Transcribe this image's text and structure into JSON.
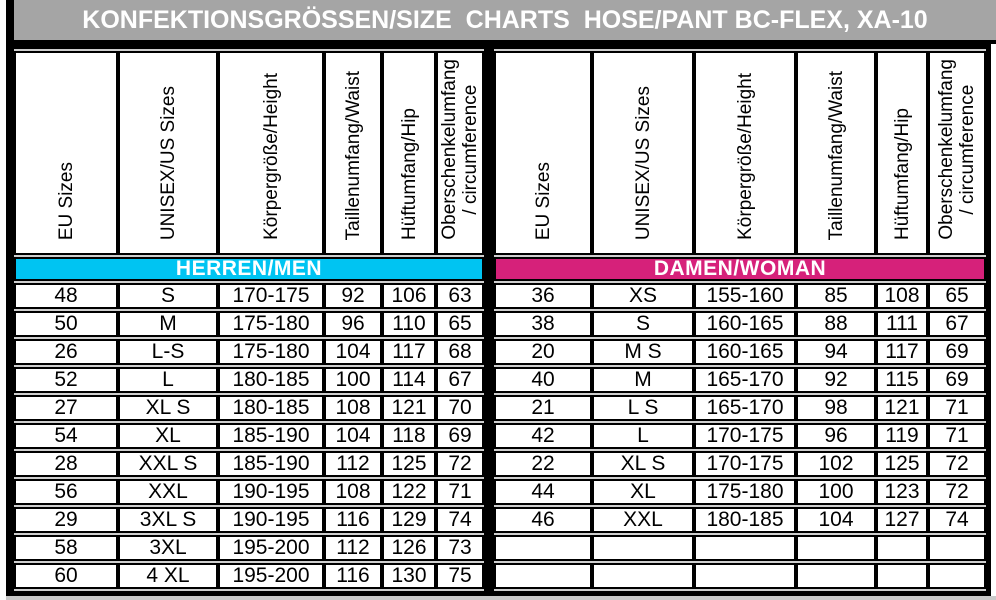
{
  "title": "KONFEKTIONSGRÖSSEN/SIZE  CHARTS  HOSE/PANT BC-FLEX, XA-10",
  "columns": [
    {
      "lines": [
        "EU Sizes"
      ]
    },
    {
      "lines": [
        "UNISEX/US Sizes"
      ]
    },
    {
      "lines": [
        "Körpergröße/Height"
      ]
    },
    {
      "lines": [
        "Taillenumfang/Waist"
      ]
    },
    {
      "lines": [
        "Hüftumfang/Hip"
      ]
    },
    {
      "lines": [
        "Oberschenkelumfang",
        "/ circumference"
      ]
    }
  ],
  "sections": [
    {
      "label": "HERREN/MEN",
      "color": "#00c4f2",
      "rows": [
        [
          "48",
          "S",
          "170-175",
          "92",
          "106",
          "63"
        ],
        [
          "50",
          "M",
          "175-180",
          "96",
          "110",
          "65"
        ],
        [
          "26",
          "L-S",
          "175-180",
          "104",
          "117",
          "68"
        ],
        [
          "52",
          "L",
          "180-185",
          "100",
          "114",
          "67"
        ],
        [
          "27",
          "XL S",
          "180-185",
          "108",
          "121",
          "70"
        ],
        [
          "54",
          "XL",
          "185-190",
          "104",
          "118",
          "69"
        ],
        [
          "28",
          "XXL S",
          "185-190",
          "112",
          "125",
          "72"
        ],
        [
          "56",
          "XXL",
          "190-195",
          "108",
          "122",
          "71"
        ],
        [
          "29",
          "3XL S",
          "190-195",
          "116",
          "129",
          "74"
        ],
        [
          "58",
          "3XL",
          "195-200",
          "112",
          "126",
          "73"
        ],
        [
          "60",
          "4 XL",
          "195-200",
          "116",
          "130",
          "75"
        ]
      ]
    },
    {
      "label": "DAMEN/WOMAN",
      "color": "#d6217a",
      "rows": [
        [
          "36",
          "XS",
          "155-160",
          "85",
          "108",
          "65"
        ],
        [
          "38",
          "S",
          "160-165",
          "88",
          "111",
          "67"
        ],
        [
          "20",
          "M S",
          "160-165",
          "94",
          "117",
          "69"
        ],
        [
          "40",
          "M",
          "165-170",
          "92",
          "115",
          "69"
        ],
        [
          "21",
          "L S",
          "165-170",
          "98",
          "121",
          "71"
        ],
        [
          "42",
          "L",
          "170-175",
          "96",
          "119",
          "71"
        ],
        [
          "22",
          "XL S",
          "170-175",
          "102",
          "125",
          "72"
        ],
        [
          "44",
          "XL",
          "175-180",
          "100",
          "123",
          "72"
        ],
        [
          "46",
          "XXL",
          "180-185",
          "104",
          "127",
          "74"
        ],
        [
          "",
          "",
          "",
          "",
          "",
          ""
        ],
        [
          "",
          "",
          "",
          "",
          "",
          ""
        ]
      ]
    }
  ]
}
